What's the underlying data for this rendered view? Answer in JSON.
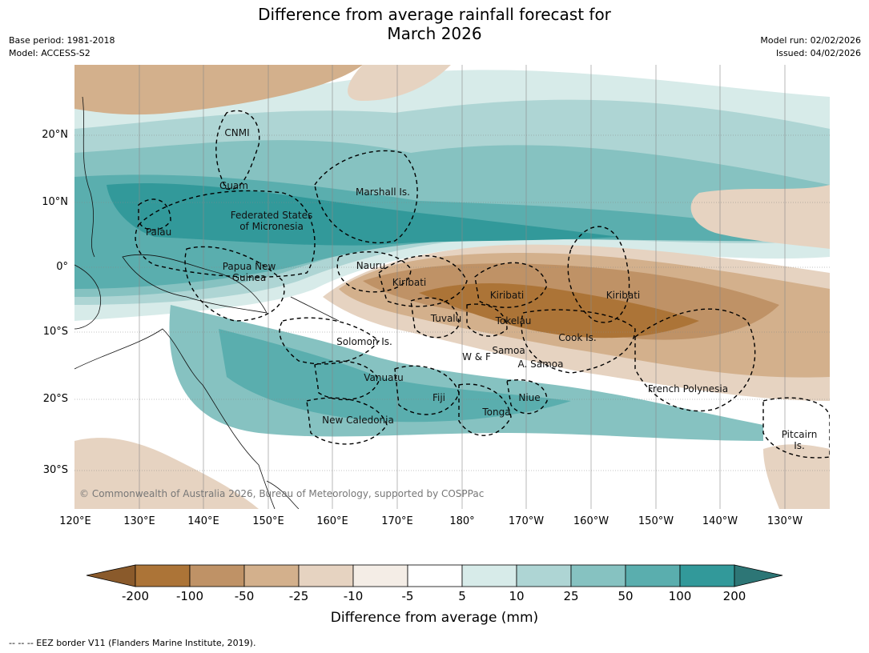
{
  "title_line1": "Difference from average rainfall forecast for",
  "title_line2": "March 2026",
  "meta_left": [
    "Base period: 1981-2018",
    "Model: ACCESS-S2"
  ],
  "meta_right": [
    "Model run: 02/02/2026",
    "Issued: 04/02/2026"
  ],
  "copyright": "© Commonwealth of Australia 2026, Bureau of Meteorology, supported by COSPPac",
  "lat_ticks": [
    "20°N",
    "10°N",
    "0°",
    "10°S",
    "20°S",
    "30°S"
  ],
  "lon_ticks": [
    "120°E",
    "130°E",
    "140°E",
    "150°E",
    "160°E",
    "170°E",
    "180°",
    "170°W",
    "160°W",
    "150°W",
    "140°W",
    "130°W"
  ],
  "places": [
    "CNMI",
    "Guam",
    "Marshall Is.",
    "Federated States",
    "of Micronesia",
    "Palau",
    "Papua New",
    "Guinea",
    "Nauru",
    "Kiribati",
    "Kiribati",
    "Kiribati",
    "Tuvalu",
    "Tokelau",
    "Cook Is.",
    "Solomon Is.",
    "W & F",
    "Samoa",
    "A. Samoa",
    "Vanuatu",
    "Fiji",
    "Niue",
    "Tonga",
    "French Polynesia",
    "New Caledonia",
    "Pitcairn",
    "Is."
  ],
  "colorbar": {
    "tick_labels": [
      "-200",
      "-100",
      "-50",
      "-25",
      "-10",
      "-5",
      "5",
      "10",
      "25",
      "50",
      "100",
      "200"
    ],
    "colors": [
      "#8a5a2b",
      "#ac7437",
      "#bf9266",
      "#d3b08c",
      "#e6d3c1",
      "#f4ede6",
      "#ffffff",
      "#d7ebe9",
      "#aed5d4",
      "#86c2c1",
      "#5aaeae",
      "#32999a",
      "#2d7676"
    ],
    "label": "Difference from average (mm)"
  },
  "footnote": "-- -- -- EEZ border V11 (Flanders Marine Institute, 2019).",
  "map_colors": {
    "ocean_base": "#ffffff",
    "grid": "#888888",
    "coast": "#111111"
  }
}
